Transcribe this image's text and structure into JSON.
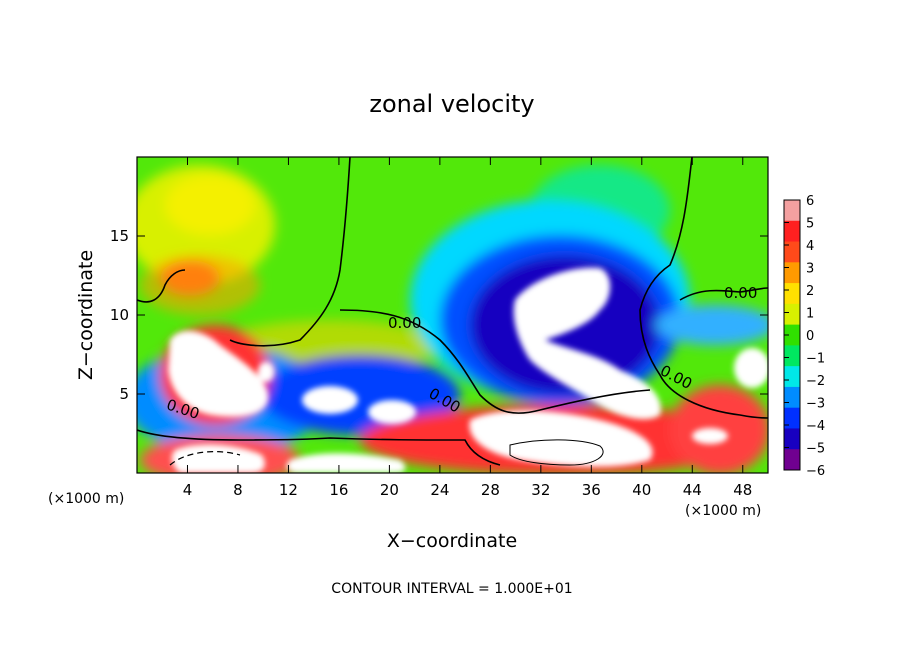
{
  "chart_data": {
    "type": "heatmap",
    "title": "zonal velocity",
    "xlabel": "X−coordinate",
    "ylabel": "Z−coordinate",
    "x_unit_label_left": "(×1000 m)",
    "x_unit_label_right": "(×1000 m)",
    "footnote": "CONTOUR INTERVAL = 1.000E+01",
    "xlim": [
      0,
      50
    ],
    "ylim": [
      0,
      20
    ],
    "xticks": [
      4,
      8,
      12,
      16,
      20,
      24,
      28,
      32,
      36,
      40,
      44,
      48
    ],
    "yticks": [
      5,
      10,
      15
    ],
    "colorbar": {
      "min": -6,
      "max": 6,
      "ticks": [
        6,
        5,
        4,
        3,
        2,
        1,
        0,
        -1,
        -2,
        -3,
        -4,
        -5,
        -6
      ],
      "tick_labels": [
        "6",
        "5",
        "4",
        "3",
        "2",
        "1",
        "0",
        "−1",
        "−2",
        "−3",
        "−4",
        "−5",
        "−6"
      ],
      "colors": [
        "#f4a0a0",
        "#ff2020",
        "#ff4a1a",
        "#ff9a00",
        "#ffe000",
        "#d8f000",
        "#30e000",
        "#00e860",
        "#00e8e8",
        "#008cff",
        "#0030ff",
        "#1800c0",
        "#700090"
      ]
    },
    "contour_labels": [
      "0.00",
      "0.00",
      "0.00",
      "0.00",
      "0.00"
    ],
    "colors": {
      "background_field": "#52e80a",
      "upper_left_yellow": "#e6f000",
      "positive_jet_core": "#ffffff",
      "negative_core": "#ffffff"
    }
  }
}
